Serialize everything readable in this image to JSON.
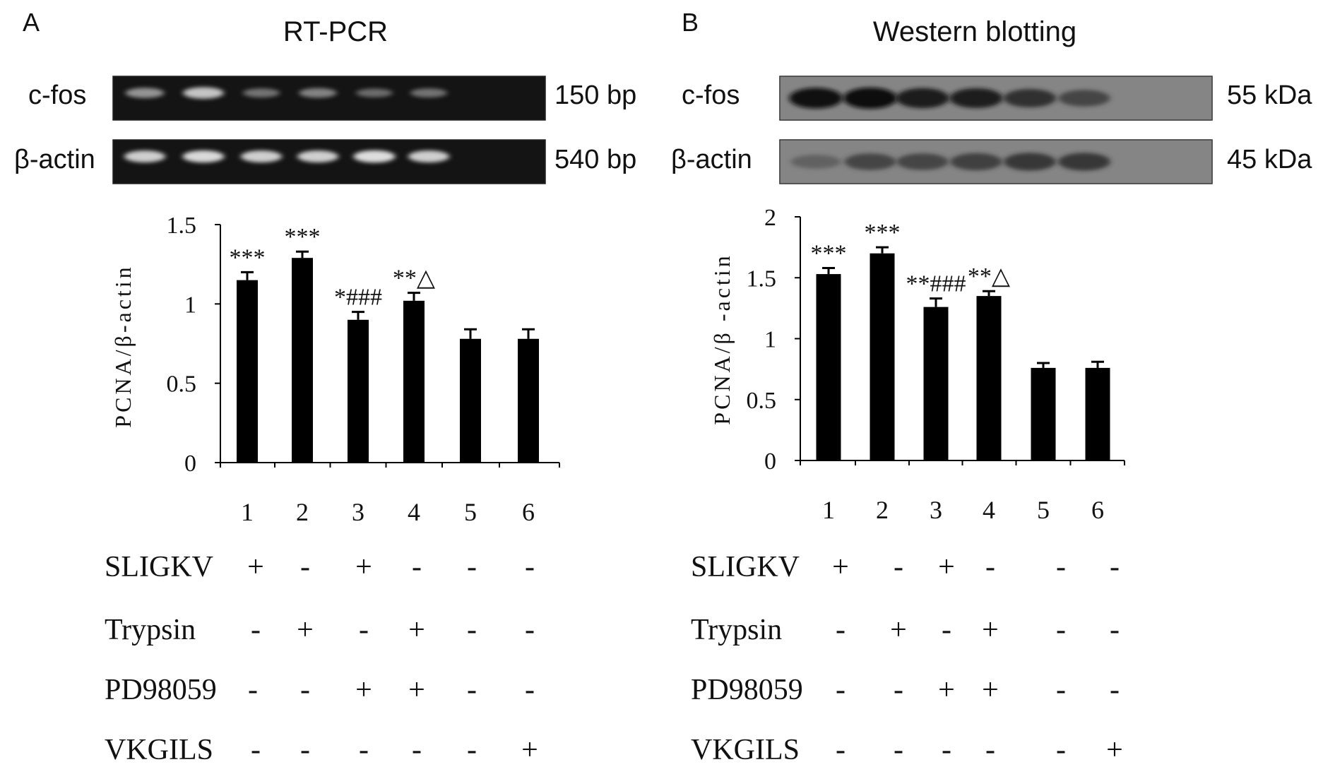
{
  "panels": [
    {
      "letter": "A",
      "title": "RT-PCR",
      "gels": [
        {
          "label": "c-fos",
          "size": "150 bp",
          "type": "dark",
          "band_intensity": [
            0.55,
            0.8,
            0.35,
            0.45,
            0.3,
            0.35
          ]
        },
        {
          "label": "β-actin",
          "size": "540 bp",
          "type": "dark",
          "band_intensity": [
            0.85,
            0.9,
            0.85,
            0.85,
            0.92,
            0.85
          ]
        }
      ],
      "annotations": [
        "***",
        "***",
        "*###",
        "**△",
        "",
        ""
      ],
      "lanes": [
        "1",
        "2",
        "3",
        "4",
        "5",
        "6"
      ],
      "treatments": [
        {
          "name": "SLIGKV",
          "marks": [
            "+",
            "-",
            "+",
            "-",
            "-",
            "-"
          ]
        },
        {
          "name": "Trypsin",
          "marks": [
            "-",
            "+",
            "-",
            "+",
            "-",
            "-"
          ]
        },
        {
          "name": "PD98059",
          "marks": [
            "-",
            "-",
            "+",
            "+",
            "-",
            "-"
          ]
        },
        {
          "name": "VKGILS",
          "marks": [
            "-",
            "-",
            "-",
            "-",
            "-",
            "+"
          ]
        }
      ]
    },
    {
      "letter": "B",
      "title": "Western blotting",
      "gels": [
        {
          "label": "c-fos",
          "size": "55 kDa",
          "type": "light",
          "band_intensity": [
            0.95,
            1.0,
            0.9,
            0.88,
            0.75,
            0.6
          ]
        },
        {
          "label": "β-actin",
          "size": "45 kDa",
          "type": "light",
          "band_intensity": [
            0.35,
            0.6,
            0.6,
            0.65,
            0.7,
            0.7
          ]
        }
      ],
      "annotations": [
        "***",
        "***",
        "**###",
        "**△",
        "",
        ""
      ],
      "lanes": [
        "1",
        "2",
        "3",
        "4",
        "5",
        "6"
      ],
      "treatments": [
        {
          "name": "SLIGKV",
          "marks": [
            "+",
            "-",
            "+",
            "-",
            "-",
            "-"
          ]
        },
        {
          "name": "Trypsin",
          "marks": [
            "-",
            "+",
            "-",
            "+",
            "-",
            "-"
          ]
        },
        {
          "name": "PD98059",
          "marks": [
            "-",
            "-",
            "+",
            "+",
            "-",
            "-"
          ]
        },
        {
          "name": "VKGILS",
          "marks": [
            "-",
            "-",
            "-",
            "-",
            "-",
            "+"
          ]
        }
      ]
    }
  ],
  "chart_data": [
    {
      "type": "bar",
      "title": "RT-PCR",
      "categories": [
        "1",
        "2",
        "3",
        "4",
        "5",
        "6"
      ],
      "values": [
        1.15,
        1.29,
        0.9,
        1.02,
        0.78,
        0.78
      ],
      "errors": [
        0.05,
        0.04,
        0.05,
        0.05,
        0.06,
        0.06
      ],
      "ylabel": "PCNA/β-actin",
      "xlabel": "",
      "ylim": [
        0,
        1.5
      ],
      "yticks": [
        "0",
        "0.5",
        "1",
        "1.5"
      ],
      "ytick_values": [
        0,
        0.5,
        1,
        1.5
      ],
      "bar_color": "#000000",
      "grid": false
    },
    {
      "type": "bar",
      "title": "Western blotting",
      "categories": [
        "1",
        "2",
        "3",
        "4",
        "5",
        "6"
      ],
      "values": [
        1.53,
        1.7,
        1.26,
        1.35,
        0.76,
        0.76
      ],
      "errors": [
        0.05,
        0.05,
        0.07,
        0.04,
        0.04,
        0.05
      ],
      "ylabel": "PCNA/β -actin",
      "xlabel": "",
      "ylim": [
        0,
        2
      ],
      "yticks": [
        "0",
        "0.5",
        "1",
        "1.5",
        "2"
      ],
      "ytick_values": [
        0,
        0.5,
        1,
        1.5,
        2
      ],
      "bar_color": "#000000",
      "grid": false
    }
  ]
}
